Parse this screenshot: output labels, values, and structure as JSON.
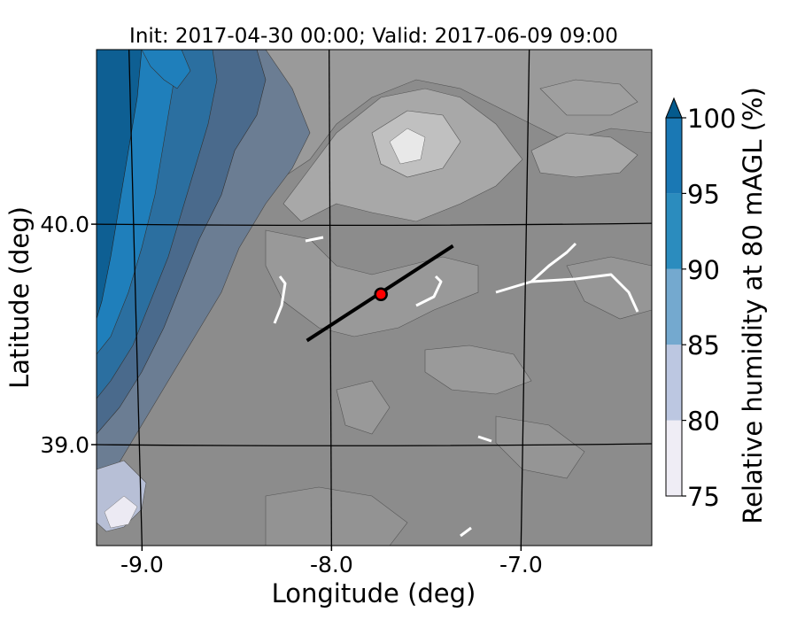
{
  "chart_data": {
    "type": "heatmap",
    "title": "Init: 2017-04-30 00:00; Valid: 2017-06-09 09:00",
    "xlabel": "Longitude (deg)",
    "ylabel": "Latitude (deg)",
    "xlim": [
      -9.2,
      -6.35
    ],
    "ylim": [
      38.55,
      40.8
    ],
    "x_ticks": [
      {
        "value": -9.0,
        "label": "-9.0"
      },
      {
        "value": -8.0,
        "label": "-8.0"
      },
      {
        "value": -7.0,
        "label": "-7.0"
      }
    ],
    "y_ticks": [
      {
        "value": 40.0,
        "label": "40.0"
      },
      {
        "value": 39.0,
        "label": "39.0"
      }
    ],
    "grid": true,
    "colorbar": {
      "label": "Relative humidity at 80 mAGL (%)",
      "levels": [
        75,
        80,
        85,
        90,
        95,
        100
      ],
      "tick_labels": [
        "75",
        "80",
        "85",
        "90",
        "95",
        "100"
      ],
      "colors": [
        "#efedf5",
        "#bcc7e1",
        "#74a9cf",
        "#2b8cbe",
        "#1a78b4",
        "#045a8d"
      ],
      "extend": "max",
      "placement": "right"
    },
    "background_color": "#8c8c8c",
    "transect": {
      "start": {
        "lon": -8.12,
        "lat": 39.48
      },
      "end": {
        "lon": -7.37,
        "lat": 39.91
      }
    },
    "marker": {
      "lon": -7.74,
      "lat": 39.69,
      "color": "#ff0000"
    }
  }
}
